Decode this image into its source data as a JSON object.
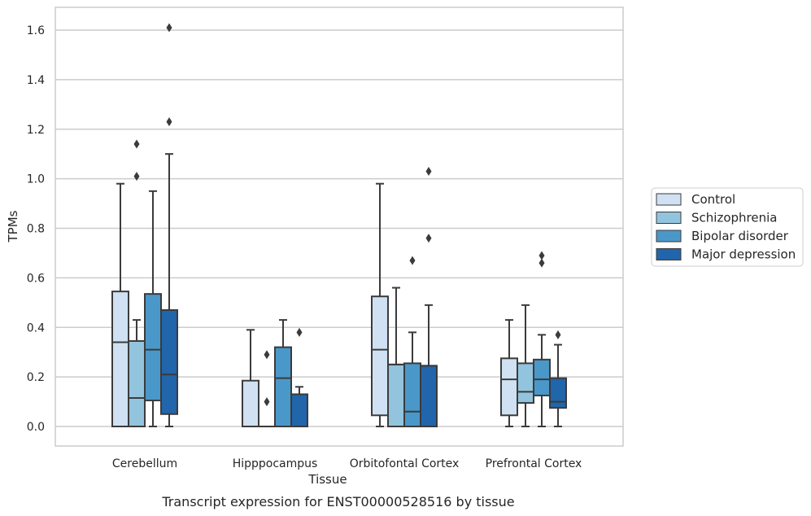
{
  "chart_data": {
    "type": "box",
    "xlabel": "Tissue",
    "ylabel": "TPMs",
    "caption": "Transcript expression for ENST00000528516 by tissue",
    "ylim": [
      -0.08,
      1.69
    ],
    "yticks": [
      0.0,
      0.2,
      0.4,
      0.6,
      0.8,
      1.0,
      1.2,
      1.4,
      1.6
    ],
    "ytick_labels": [
      "0.0",
      "0.2",
      "0.4",
      "0.6",
      "0.8",
      "1.0",
      "1.2",
      "1.4",
      "1.6"
    ],
    "grid": "horizontal",
    "legend_position": "right",
    "categories": [
      "Cerebellum",
      "Hipppocampus",
      "Orbitofontal Cortex",
      "Prefrontal Cortex"
    ],
    "series": [
      {
        "name": "Control",
        "color": "#cfe1f2",
        "boxes": [
          {
            "q1": 0.0,
            "median": 0.34,
            "q3": 0.545,
            "whisker_low": 0.0,
            "whisker_high": 0.98,
            "outliers": []
          },
          {
            "q1": 0.0,
            "median": 0.0,
            "q3": 0.185,
            "whisker_low": 0.0,
            "whisker_high": 0.39,
            "outliers": []
          },
          {
            "q1": 0.045,
            "median": 0.31,
            "q3": 0.525,
            "whisker_low": 0.0,
            "whisker_high": 0.98,
            "outliers": []
          },
          {
            "q1": 0.045,
            "median": 0.19,
            "q3": 0.275,
            "whisker_low": 0.0,
            "whisker_high": 0.43,
            "outliers": []
          }
        ]
      },
      {
        "name": "Schizophrenia",
        "color": "#93c4de",
        "boxes": [
          {
            "q1": 0.0,
            "median": 0.115,
            "q3": 0.345,
            "whisker_low": 0.0,
            "whisker_high": 0.43,
            "outliers": [
              1.01,
              1.14
            ]
          },
          {
            "q1": 0.0,
            "median": 0.0,
            "q3": 0.0,
            "whisker_low": 0.0,
            "whisker_high": 0.0,
            "outliers": [
              0.1,
              0.29
            ]
          },
          {
            "q1": 0.0,
            "median": 0.25,
            "q3": 0.25,
            "whisker_low": 0.0,
            "whisker_high": 0.56,
            "outliers": []
          },
          {
            "q1": 0.095,
            "median": 0.14,
            "q3": 0.255,
            "whisker_low": 0.0,
            "whisker_high": 0.49,
            "outliers": []
          }
        ]
      },
      {
        "name": "Bipolar disorder",
        "color": "#4a98c9",
        "boxes": [
          {
            "q1": 0.105,
            "median": 0.31,
            "q3": 0.535,
            "whisker_low": 0.0,
            "whisker_high": 0.95,
            "outliers": []
          },
          {
            "q1": 0.0,
            "median": 0.195,
            "q3": 0.32,
            "whisker_low": 0.0,
            "whisker_high": 0.43,
            "outliers": []
          },
          {
            "q1": 0.0,
            "median": 0.06,
            "q3": 0.255,
            "whisker_low": 0.0,
            "whisker_high": 0.38,
            "outliers": [
              0.67
            ]
          },
          {
            "q1": 0.125,
            "median": 0.19,
            "q3": 0.27,
            "whisker_low": 0.0,
            "whisker_high": 0.37,
            "outliers": [
              0.66,
              0.69
            ]
          }
        ]
      },
      {
        "name": "Major depression",
        "color": "#2165ab",
        "boxes": [
          {
            "q1": 0.05,
            "median": 0.21,
            "q3": 0.47,
            "whisker_low": 0.0,
            "whisker_high": 1.1,
            "outliers": [
              1.23,
              1.61
            ]
          },
          {
            "q1": 0.0,
            "median": 0.0,
            "q3": 0.13,
            "whisker_low": 0.0,
            "whisker_high": 0.16,
            "outliers": [
              0.38
            ]
          },
          {
            "q1": 0.0,
            "median": 0.245,
            "q3": 0.245,
            "whisker_low": 0.0,
            "whisker_high": 0.49,
            "outliers": [
              0.76,
              1.03
            ]
          },
          {
            "q1": 0.075,
            "median": 0.1,
            "q3": 0.195,
            "whisker_low": 0.0,
            "whisker_high": 0.33,
            "outliers": [
              0.37
            ]
          }
        ]
      }
    ]
  }
}
